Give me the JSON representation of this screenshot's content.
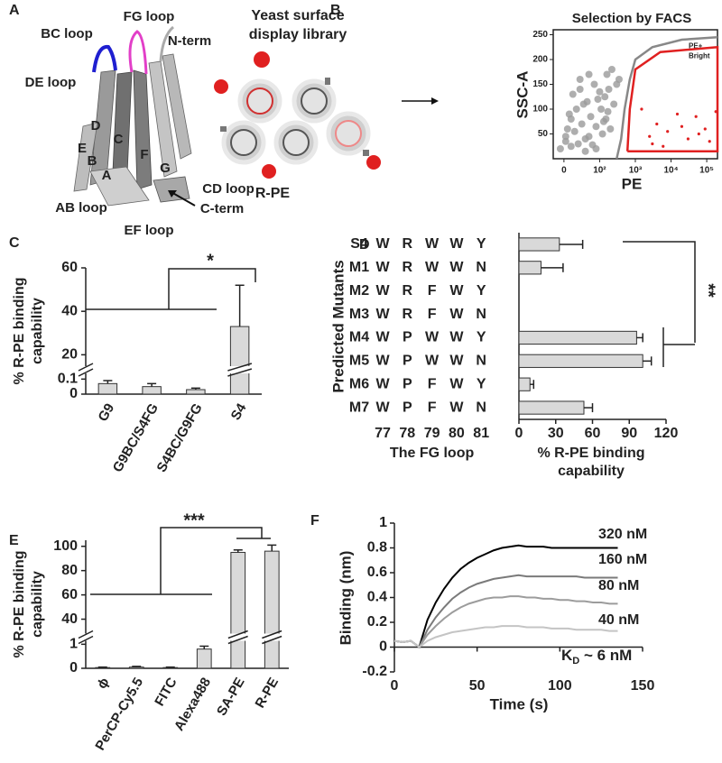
{
  "panel_labels": [
    "A",
    "B",
    "C",
    "D",
    "E",
    "F"
  ],
  "structure": {
    "labels": [
      "BC loop",
      "FG loop",
      "N-term",
      "DE loop",
      "D",
      "C",
      "E",
      "B",
      "F",
      "A",
      "G",
      "CD loop",
      "C-term",
      "AB loop",
      "EF loop"
    ]
  },
  "library": {
    "title": [
      "Yeast surface",
      "display library"
    ],
    "ligand": "R-PE"
  },
  "chart_data": [
    {
      "type": "scatter",
      "title": "Selection by FACS",
      "xlabel": "PE",
      "ylabel": "SSC-A",
      "xscale": "symlog",
      "xlim": [
        -30,
        200000
      ],
      "xticks": [
        0,
        {
          "value": 100,
          "label": "10²"
        },
        {
          "value": 1000,
          "label": "10³"
        },
        {
          "value": 10000,
          "label": "10⁴"
        },
        {
          "value": 100000,
          "label": "10⁵"
        }
      ],
      "ylim": [
        0,
        260
      ],
      "yticks": [
        50,
        100,
        150,
        200,
        250
      ],
      "points": {
        "color": "#9a9a9a",
        "x": [
          -10,
          5,
          20,
          40,
          60,
          80,
          10,
          30,
          50,
          70,
          90,
          120,
          150,
          200,
          15,
          35,
          55,
          75,
          95,
          130,
          170,
          250,
          25,
          45,
          65,
          85,
          110,
          140,
          180,
          300,
          5,
          20,
          45,
          70,
          100,
          160,
          220,
          350,
          60,
          90
        ],
        "y": [
          20,
          35,
          25,
          30,
          40,
          28,
          60,
          55,
          70,
          45,
          65,
          50,
          80,
          60,
          90,
          100,
          110,
          85,
          120,
          75,
          95,
          110,
          130,
          140,
          115,
          150,
          100,
          125,
          140,
          150,
          45,
          80,
          160,
          170,
          135,
          170,
          180,
          160,
          15,
          20
        ]
      },
      "highlighted": {
        "color": "#e02020",
        "x": [
          1500,
          2500,
          4000,
          8000,
          15000,
          30000,
          50000,
          90000,
          120000,
          3000,
          20000,
          60000,
          180000,
          6000
        ],
        "y": [
          100,
          45,
          70,
          55,
          90,
          40,
          85,
          60,
          35,
          30,
          65,
          50,
          95,
          25
        ]
      },
      "gates": [
        {
          "name": "PE+",
          "color": "#888888",
          "x": [
            300,
            400,
            500,
            700,
            1000,
            3000,
            20000,
            200000
          ],
          "y": [
            0,
            40,
            100,
            160,
            200,
            225,
            240,
            245
          ]
        },
        {
          "name": "Bright",
          "color": "#e02020",
          "x": [
            600,
            700,
            1000,
            5000,
            200000,
            200000,
            600
          ],
          "y": [
            15,
            100,
            180,
            215,
            225,
            15,
            15
          ]
        }
      ]
    },
    {
      "type": "bar",
      "ylabel": [
        "% R-PE binding",
        "capability"
      ],
      "categories": [
        "G9",
        "G9BC/S4FG",
        "S4BC/G9FG",
        "S4"
      ],
      "values": [
        0.07,
        0.05,
        0.03,
        33
      ],
      "errors": [
        0.02,
        0.02,
        0.01,
        19
      ],
      "color": "#d9d9d9",
      "ylim": [
        0,
        60
      ],
      "ybreak": [
        0.12,
        16
      ],
      "yticks": [
        0,
        0.1,
        20,
        40,
        60
      ],
      "annotation": "*"
    },
    {
      "type": "hbar",
      "ylabel": "Predicted Mutants",
      "xlabel": [
        "% R-PE binding",
        "capability"
      ],
      "categories": [
        "S4",
        "M1",
        "M2",
        "M3",
        "M4",
        "M5",
        "M6",
        "M7"
      ],
      "values": [
        33,
        18,
        0,
        0,
        96,
        101,
        9,
        53
      ],
      "errors": [
        19,
        18,
        0,
        0,
        5,
        7,
        3,
        7
      ],
      "color": "#d9d9d9",
      "xlim": [
        0,
        120
      ],
      "xticks": [
        0,
        30,
        60,
        90,
        120
      ],
      "annotation": "**",
      "table": {
        "label": "The FG loop",
        "positions": [
          77,
          78,
          79,
          80,
          81
        ],
        "residues": [
          [
            "W",
            "R",
            "W",
            "W",
            "Y"
          ],
          [
            "W",
            "R",
            "W",
            "W",
            "N"
          ],
          [
            "W",
            "R",
            "F",
            "W",
            "Y"
          ],
          [
            "W",
            "R",
            "F",
            "W",
            "N"
          ],
          [
            "W",
            "P",
            "W",
            "W",
            "Y"
          ],
          [
            "W",
            "P",
            "W",
            "W",
            "N"
          ],
          [
            "W",
            "P",
            "F",
            "W",
            "Y"
          ],
          [
            "W",
            "P",
            "F",
            "W",
            "N"
          ]
        ]
      }
    },
    {
      "type": "bar",
      "ylabel": [
        "% R-PE binding",
        "capability"
      ],
      "categories": [
        "ϕ",
        "PerCP-Cy5.5",
        "FITC",
        "Alexa488",
        "SA-PE",
        "R-PE"
      ],
      "values": [
        0.03,
        0.05,
        0.03,
        0.8,
        95,
        96
      ],
      "errors": [
        0.02,
        0.03,
        0.02,
        0.12,
        2,
        5
      ],
      "color": "#d9d9d9",
      "ylim": [
        0,
        105
      ],
      "ybreak": [
        1.05,
        30
      ],
      "yticks": [
        0,
        1,
        40,
        60,
        80,
        100
      ],
      "annotation": "***"
    },
    {
      "type": "line",
      "xlabel": "Time (s)",
      "ylabel": "Binding (nm)",
      "x": [
        0,
        5,
        10,
        15,
        20,
        25,
        30,
        35,
        40,
        45,
        50,
        55,
        60,
        65,
        70,
        75,
        80,
        85,
        90,
        95,
        100,
        105,
        110,
        115,
        120,
        125,
        130,
        135
      ],
      "series": [
        {
          "name": "320 nM",
          "color": "#000000",
          "values": [
            0.05,
            0.04,
            0.05,
            0.0,
            0.22,
            0.36,
            0.47,
            0.56,
            0.63,
            0.68,
            0.72,
            0.75,
            0.78,
            0.8,
            0.81,
            0.82,
            0.81,
            0.81,
            0.81,
            0.8,
            0.8,
            0.8,
            0.8,
            0.8,
            0.8,
            0.8,
            0.8,
            0.8
          ]
        },
        {
          "name": "160 nM",
          "color": "#7a7a7a",
          "values": [
            0.05,
            0.04,
            0.05,
            0.0,
            0.14,
            0.24,
            0.32,
            0.39,
            0.44,
            0.48,
            0.51,
            0.53,
            0.55,
            0.56,
            0.57,
            0.58,
            0.57,
            0.57,
            0.57,
            0.57,
            0.57,
            0.57,
            0.57,
            0.56,
            0.56,
            0.56,
            0.56,
            0.56
          ]
        },
        {
          "name": "80 nM",
          "color": "#9c9c9c",
          "values": [
            0.05,
            0.04,
            0.05,
            0.0,
            0.1,
            0.17,
            0.23,
            0.28,
            0.32,
            0.35,
            0.37,
            0.39,
            0.4,
            0.4,
            0.41,
            0.41,
            0.4,
            0.4,
            0.39,
            0.39,
            0.38,
            0.38,
            0.37,
            0.37,
            0.36,
            0.36,
            0.35,
            0.35
          ]
        },
        {
          "name": "40 nM",
          "color": "#c4c4c4",
          "values": [
            0.05,
            0.04,
            0.05,
            0.0,
            0.05,
            0.08,
            0.1,
            0.12,
            0.13,
            0.14,
            0.15,
            0.16,
            0.16,
            0.17,
            0.17,
            0.17,
            0.16,
            0.16,
            0.16,
            0.15,
            0.15,
            0.15,
            0.14,
            0.14,
            0.14,
            0.14,
            0.13,
            0.13
          ]
        }
      ],
      "xlim": [
        0,
        150
      ],
      "ylim": [
        -0.2,
        1
      ],
      "xticks": [
        0,
        50,
        100,
        150
      ],
      "yticks": [
        -0.2,
        0,
        0.2,
        0.4,
        0.6,
        0.8,
        1
      ],
      "annotation": {
        "base": "K",
        "sub": "D",
        "rest": " ~ 6 nM"
      }
    }
  ]
}
